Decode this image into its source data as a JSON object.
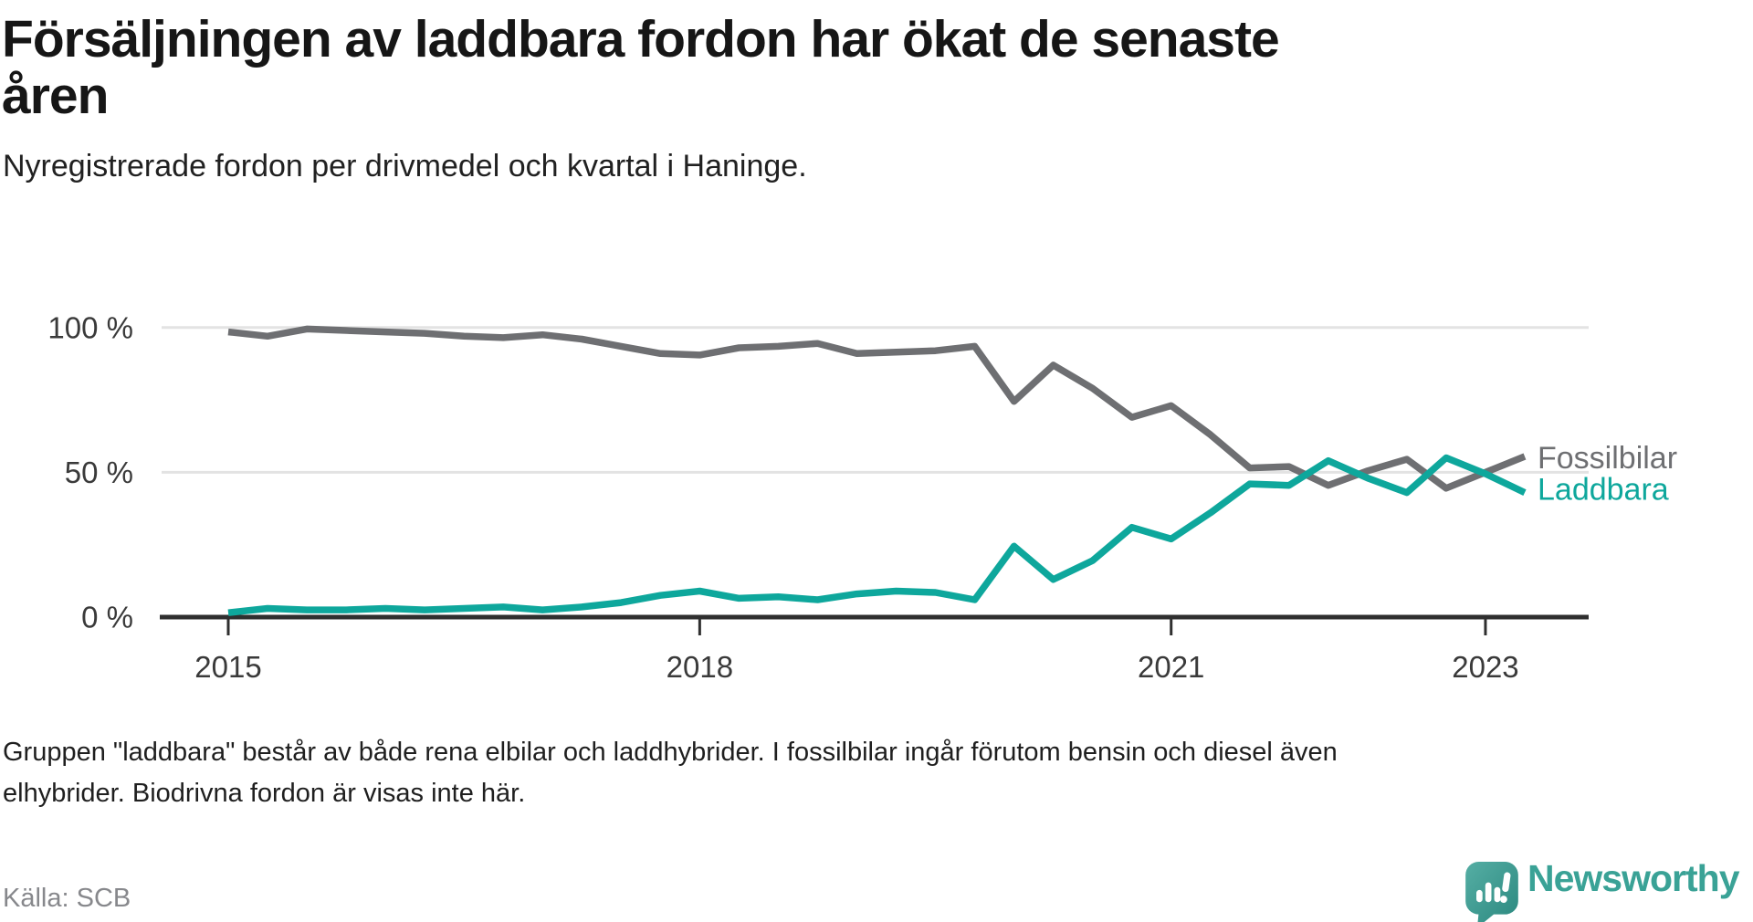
{
  "header": {
    "title_line1": "Försäljningen av laddbara fordon har ökat de senaste",
    "title_line2": "åren",
    "subtitle": "Nyregistrerade fordon per drivmedel och kvartal i Haninge."
  },
  "chart_data": {
    "type": "line",
    "unit": "%",
    "title": "",
    "xlabel": "",
    "ylabel": "",
    "ylim": [
      0,
      100
    ],
    "grid": "horizontal",
    "grid_values": [
      50,
      100
    ],
    "y_ticks": [
      {
        "label": "0 %",
        "value": 0
      },
      {
        "label": "50 %",
        "value": 50
      },
      {
        "label": "100 %",
        "value": 100
      }
    ],
    "x_ticks": [
      {
        "label": "2015",
        "quarter_index": 0
      },
      {
        "label": "2018",
        "quarter_index": 12
      },
      {
        "label": "2021",
        "quarter_index": 24
      },
      {
        "label": "2023",
        "quarter_index": 32
      }
    ],
    "quarters": [
      "2015Q1",
      "2015Q2",
      "2015Q3",
      "2015Q4",
      "2016Q1",
      "2016Q2",
      "2016Q3",
      "2016Q4",
      "2017Q1",
      "2017Q2",
      "2017Q3",
      "2017Q4",
      "2018Q1",
      "2018Q2",
      "2018Q3",
      "2018Q4",
      "2019Q1",
      "2019Q2",
      "2019Q3",
      "2019Q4",
      "2020Q1",
      "2020Q2",
      "2020Q3",
      "2020Q4",
      "2021Q1",
      "2021Q2",
      "2021Q3",
      "2021Q4",
      "2022Q1",
      "2022Q2",
      "2022Q3",
      "2022Q4",
      "2023Q1",
      "2023Q2"
    ],
    "legend_position": "right-end-of-line",
    "series": [
      {
        "name": "Fossilbilar",
        "color": "#6e6f72",
        "values": [
          98.5,
          97,
          99.5,
          99,
          98.5,
          98,
          97,
          96.5,
          97.5,
          96,
          93.5,
          91,
          90.5,
          93,
          93.5,
          94.5,
          91,
          91.5,
          92,
          93.5,
          74.5,
          87,
          79,
          69,
          73,
          63,
          51.5,
          52,
          45.5,
          50.5,
          54.5,
          44.5,
          50,
          55.5
        ]
      },
      {
        "name": "Laddbara",
        "color": "#0ea79c",
        "values": [
          1.5,
          3,
          2.5,
          2.5,
          3,
          2.5,
          3,
          3.5,
          2.5,
          3.5,
          5,
          7.5,
          9,
          6.5,
          7,
          6,
          8,
          9,
          8.5,
          6,
          24.5,
          13,
          19.5,
          31,
          27,
          36,
          46,
          45.5,
          54,
          48,
          43,
          55,
          49.5,
          43
        ]
      }
    ]
  },
  "footer": {
    "note_line1": "Gruppen \"laddbara\" består av både rena elbilar och laddhybrider. I fossilbilar ingår förutom bensin och diesel även",
    "note_line2": "elhybrider. Biodrivna fordon är visas inte här.",
    "source": "Källa: SCB",
    "brand": "Newsworthy"
  },
  "colors": {
    "fossil_gray": "#6e6f72",
    "laddbara_teal": "#0ea79c",
    "gridline": "#e3e3e3",
    "axis": "#2f2f2f",
    "tick_label": "#3a3a3a",
    "brand_teal": "#3aa296",
    "logo_gradient_start": "#55aea4",
    "logo_gradient_end": "#2b887f"
  }
}
